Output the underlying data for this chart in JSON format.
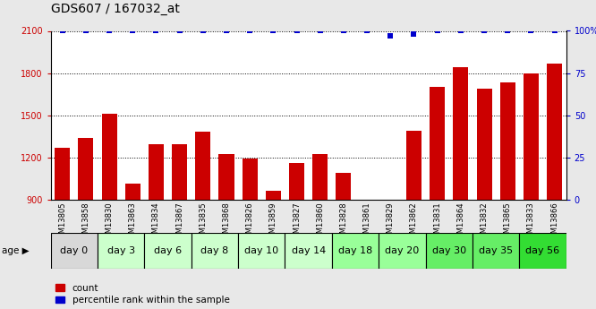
{
  "title": "GDS607 / 167032_at",
  "samples": [
    "GSM13805",
    "GSM13858",
    "GSM13830",
    "GSM13863",
    "GSM13834",
    "GSM13867",
    "GSM13835",
    "GSM13868",
    "GSM13826",
    "GSM13859",
    "GSM13827",
    "GSM13860",
    "GSM13828",
    "GSM13861",
    "GSM13829",
    "GSM13862",
    "GSM13831",
    "GSM13864",
    "GSM13832",
    "GSM13865",
    "GSM13833",
    "GSM13866"
  ],
  "counts": [
    1270,
    1340,
    1510,
    1010,
    1290,
    1290,
    1380,
    1220,
    1190,
    960,
    1160,
    1220,
    1090,
    870,
    870,
    1390,
    1700,
    1840,
    1690,
    1730,
    1800,
    1870
  ],
  "percentiles": [
    100,
    100,
    100,
    100,
    100,
    100,
    100,
    100,
    100,
    100,
    100,
    100,
    100,
    100,
    97,
    98,
    100,
    100,
    100,
    100,
    100,
    100
  ],
  "age_groups": [
    {
      "label": "day 0",
      "start": 0,
      "end": 2,
      "color": "#d8d8d8"
    },
    {
      "label": "day 3",
      "start": 2,
      "end": 4,
      "color": "#ccffcc"
    },
    {
      "label": "day 6",
      "start": 4,
      "end": 6,
      "color": "#ccffcc"
    },
    {
      "label": "day 8",
      "start": 6,
      "end": 8,
      "color": "#ccffcc"
    },
    {
      "label": "day 10",
      "start": 8,
      "end": 10,
      "color": "#ccffcc"
    },
    {
      "label": "day 14",
      "start": 10,
      "end": 12,
      "color": "#ccffcc"
    },
    {
      "label": "day 18",
      "start": 12,
      "end": 14,
      "color": "#99ff99"
    },
    {
      "label": "day 20",
      "start": 14,
      "end": 16,
      "color": "#99ff99"
    },
    {
      "label": "day 30",
      "start": 16,
      "end": 18,
      "color": "#66ee66"
    },
    {
      "label": "day 35",
      "start": 18,
      "end": 20,
      "color": "#66ee66"
    },
    {
      "label": "day 56",
      "start": 20,
      "end": 22,
      "color": "#33dd33"
    }
  ],
  "ylim_left": [
    900,
    2100
  ],
  "ylim_right": [
    0,
    100
  ],
  "yticks_left": [
    900,
    1200,
    1500,
    1800,
    2100
  ],
  "yticks_right": [
    0,
    25,
    50,
    75,
    100
  ],
  "bar_color": "#cc0000",
  "percentile_color": "#0000cc",
  "bg_color": "#e8e8e8",
  "plot_bg": "#ffffff",
  "title_fontsize": 10,
  "tick_fontsize": 7,
  "legend_fontsize": 7.5,
  "age_label_fontsize": 8,
  "sample_label_fontsize": 6
}
